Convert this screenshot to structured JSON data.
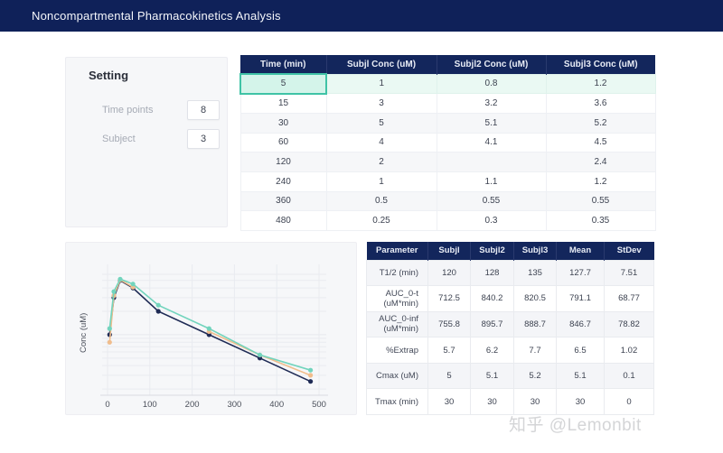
{
  "header": {
    "title": "Noncompartmental Pharmacokinetics Analysis"
  },
  "settings": {
    "title": "Setting",
    "fields": [
      {
        "label": "Time points",
        "value": "8"
      },
      {
        "label": "Subject",
        "value": "3"
      }
    ]
  },
  "data_table": {
    "columns": [
      "Time (min)",
      "Subjl Conc (uM)",
      "Subjl2 Conc (uM)",
      "Subjl3 Conc (uM)"
    ],
    "rows": [
      [
        "5",
        "1",
        "0.8",
        "1.2"
      ],
      [
        "15",
        "3",
        "3.2",
        "3.6"
      ],
      [
        "30",
        "5",
        "5.1",
        "5.2"
      ],
      [
        "60",
        "4",
        "4.1",
        "4.5"
      ],
      [
        "120",
        "2",
        "",
        "2.4"
      ],
      [
        "240",
        "1",
        "1.1",
        "1.2"
      ],
      [
        "360",
        "0.5",
        "0.55",
        "0.55"
      ],
      [
        "480",
        "0.25",
        "0.3",
        "0.35"
      ]
    ],
    "selected": {
      "row": 0,
      "col": 0
    }
  },
  "param_table": {
    "columns": [
      "Parameter",
      "Subjl",
      "Subjl2",
      "Subjl3",
      "Mean",
      "StDev"
    ],
    "rows": [
      [
        "T1/2 (min)",
        "120",
        "128",
        "135",
        "127.7",
        "7.51"
      ],
      [
        "AUC_0-t (uM*min)",
        "712.5",
        "840.2",
        "820.5",
        "791.1",
        "68.77"
      ],
      [
        "AUC_0-inf (uM*min)",
        "755.8",
        "895.7",
        "888.7",
        "846.7",
        "78.82"
      ],
      [
        "%Extrap",
        "5.7",
        "6.2",
        "7.7",
        "6.5",
        "1.02"
      ],
      [
        "Cmax (uM)",
        "5",
        "5.1",
        "5.2",
        "5.1",
        "0.1"
      ],
      [
        "Tmax (min)",
        "30",
        "30",
        "30",
        "30",
        "0"
      ]
    ]
  },
  "chart_data": {
    "type": "line",
    "title": "",
    "xlabel": "",
    "ylabel": "Conc (uM)",
    "x": [
      5,
      15,
      30,
      60,
      120,
      240,
      360,
      480
    ],
    "series": [
      {
        "name": "Subjl",
        "color": "#1f2b55",
        "values": [
          1,
          3,
          5,
          4,
          2,
          1,
          0.5,
          0.25
        ]
      },
      {
        "name": "Subjl2",
        "color": "#f0bd8c",
        "values": [
          0.8,
          3.2,
          5.1,
          4.1,
          null,
          1.1,
          0.55,
          0.3
        ]
      },
      {
        "name": "Subjl3",
        "color": "#72d4bd",
        "values": [
          1.2,
          3.6,
          5.2,
          4.5,
          2.4,
          1.2,
          0.55,
          0.35
        ]
      }
    ],
    "x_ticks": [
      0,
      100,
      200,
      300,
      400,
      500
    ],
    "xlim": [
      0,
      500
    ],
    "ylim": [
      0.18,
      6.5
    ],
    "y_scale": "log",
    "grid": true,
    "legend": "none"
  },
  "watermark": {
    "text": "知乎 @Lemonbit"
  },
  "colors": {
    "header_bg": "#0f2159",
    "table_header_bg": "#13265c",
    "panel_bg": "#f6f7f9",
    "selected_cell_border": "#3fc3a6",
    "selected_cell_bg": "#d4f4ea",
    "selected_row_bg": "#eaf9f3",
    "grid_line": "#e9ebf0"
  }
}
